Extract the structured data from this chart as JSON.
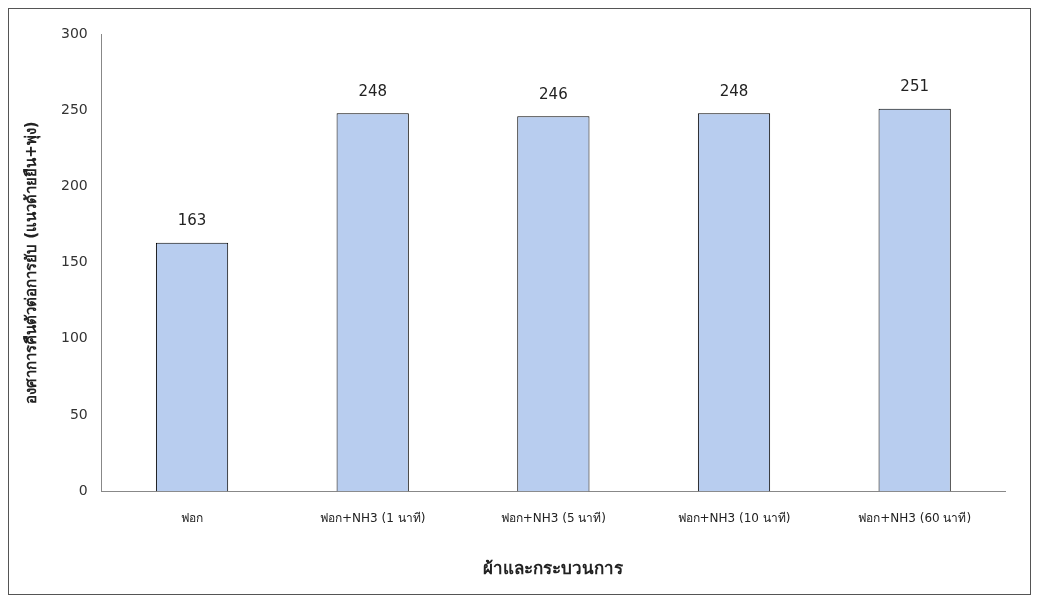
{
  "chart_data": {
    "type": "bar",
    "ylabel": "องศาการคืนตัวต่อการยับ (แนวด้ายยืน+พุ่ง)",
    "xlabel": "ผ้าและกระบวนการ",
    "categories": [
      "ฟอก",
      "ฟอก+NH3 (1 นาที)",
      "ฟอก+NH3 (5 นาที)",
      "ฟอก+NH3 (10 นาที)",
      "ฟอก+NH3 (60 นาที)"
    ],
    "values": [
      163,
      248,
      246,
      248,
      251
    ],
    "color": "#b8cdef",
    "ylim": [
      0,
      300
    ],
    "yticks": [
      0,
      50,
      100,
      150,
      200,
      250,
      300
    ],
    "grid": false,
    "legend": false,
    "data_labels": true
  }
}
